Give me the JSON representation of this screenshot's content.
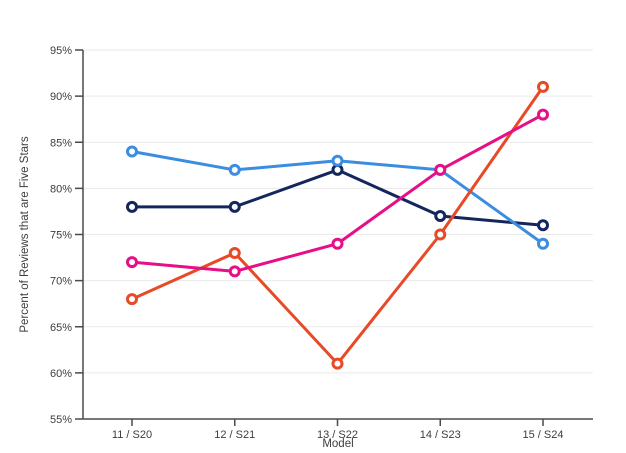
{
  "chart_data": {
    "type": "line",
    "title": "",
    "xlabel": "Model",
    "ylabel": "Percent of Reviews that are Five Stars",
    "categories": [
      "11 / S20",
      "12 / S21",
      "13 / S22",
      "14 / S23",
      "15 / S24"
    ],
    "series": [
      {
        "name": "navy",
        "color": "#14265C",
        "values": [
          78,
          78,
          82,
          77,
          76
        ]
      },
      {
        "name": "light-blue",
        "color": "#3A8DE0",
        "values": [
          84,
          82,
          83,
          82,
          74
        ]
      },
      {
        "name": "orange",
        "color": "#E84A28",
        "values": [
          68,
          73,
          61,
          75,
          91
        ]
      },
      {
        "name": "magenta",
        "color": "#E60F87",
        "values": [
          72,
          71,
          74,
          82,
          88
        ]
      }
    ],
    "ylim": [
      55,
      95
    ],
    "ytick_step": 5,
    "ytick_labels": [
      "55%",
      "60%",
      "65%",
      "70%",
      "75%",
      "80%",
      "85%",
      "90%",
      "95%"
    ],
    "grid": "horizontal",
    "legend": "none",
    "style": {
      "background_color": "#ffffff",
      "grid_color": "#eaeaea",
      "axis_color": "#4a4a4a",
      "text_color": "#3d3d3d",
      "marker_fill": "#ffffff"
    }
  }
}
